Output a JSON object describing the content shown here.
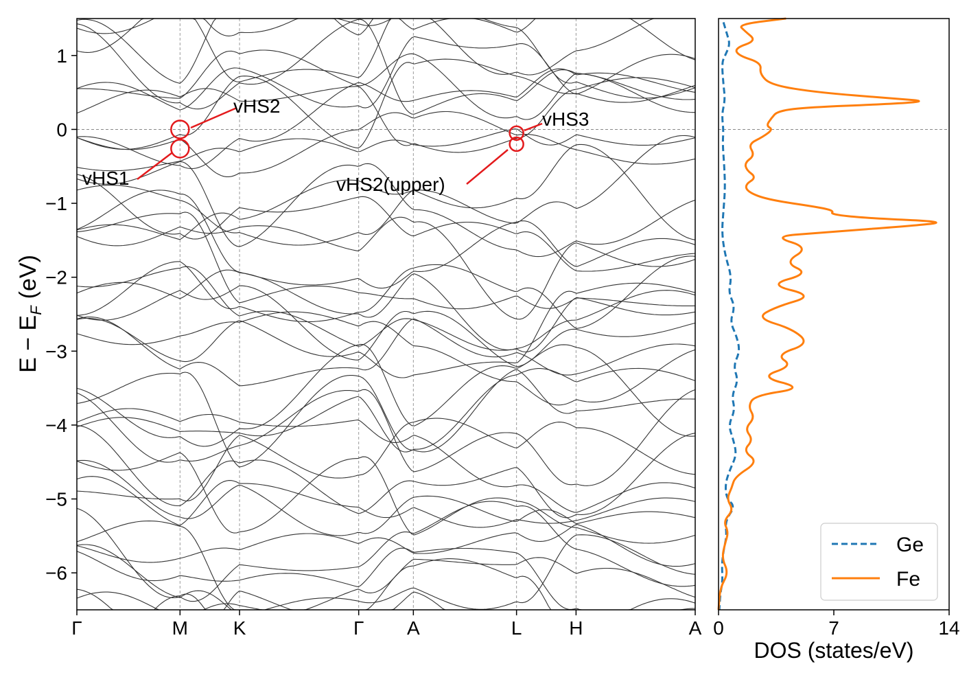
{
  "chart_data": [
    {
      "type": "line",
      "subtype": "band-structure",
      "ylabel_main": "E − E",
      "ylabel_sub": "F",
      "ylabel_unit": "(eV)",
      "ylim": [
        -6.5,
        1.5
      ],
      "yticks": [
        1,
        0,
        -1,
        -2,
        -3,
        -4,
        -5,
        -6
      ],
      "ytick_labels": [
        "1",
        "0",
        "−1",
        "−2",
        "−3",
        "−4",
        "−5",
        "−6"
      ],
      "k_path": [
        {
          "label": "Γ",
          "k": 0
        },
        {
          "label": "M",
          "k": 1
        },
        {
          "label": "K",
          "k": 1.577
        },
        {
          "label": "Γ",
          "k": 2.732
        },
        {
          "label": "A",
          "k": 3.262
        },
        {
          "label": "L",
          "k": 4.262
        },
        {
          "label": "H",
          "k": 4.839
        },
        {
          "label": "A",
          "k": 5.994
        }
      ],
      "fermi_level": 0,
      "grid": "vertical dashed at high-symmetry points",
      "annotations": [
        {
          "text": "vHS2",
          "k": 1,
          "energy": 0.0
        },
        {
          "text": "vHS1",
          "k": 1,
          "energy": -0.26
        },
        {
          "text": "vHS3",
          "k": 4.262,
          "energy": -0.05
        },
        {
          "text": "vHS2(upper)",
          "k": 4.262,
          "energy": -0.2
        }
      ]
    },
    {
      "type": "line",
      "subtype": "density-of-states",
      "xlabel": "DOS (states/eV)",
      "xlim": [
        0,
        14
      ],
      "xticks": [
        0,
        7,
        14
      ],
      "xtick_labels": [
        "0",
        "7",
        "14"
      ],
      "ylim": [
        -6.5,
        1.5
      ],
      "fermi_level": 0,
      "legend_position": "bottom-right",
      "series": [
        {
          "name": "Ge",
          "style": "dashed",
          "color": "#1f77b4",
          "energy": [
            1.45,
            1.3,
            1.15,
            1.0,
            0.9,
            0.6,
            0.4,
            0.2,
            0.0,
            -0.2,
            -0.5,
            -0.8,
            -1.1,
            -1.4,
            -1.7,
            -2.0,
            -2.2,
            -2.4,
            -2.6,
            -2.8,
            -3.0,
            -3.2,
            -3.4,
            -3.6,
            -3.8,
            -4.0,
            -4.2,
            -4.4,
            -4.6,
            -4.8,
            -5.0,
            -5.1,
            -5.3,
            -5.5,
            -5.7,
            -5.9,
            -6.1,
            -6.3,
            -6.5
          ],
          "dos": [
            0.3,
            0.5,
            0.7,
            0.4,
            0.2,
            0.3,
            0.4,
            0.2,
            0.3,
            0.25,
            0.35,
            0.4,
            0.3,
            0.2,
            0.4,
            0.8,
            0.6,
            1.0,
            0.7,
            1.1,
            1.3,
            0.9,
            1.2,
            0.8,
            1.0,
            0.6,
            0.9,
            1.1,
            0.7,
            0.4,
            0.5,
            1.0,
            0.4,
            0.5,
            0.3,
            0.2,
            0.25,
            0.1,
            0.05
          ]
        },
        {
          "name": "Fe",
          "style": "solid",
          "color": "#ff7f0e",
          "energy": [
            1.5,
            1.42,
            1.33,
            1.2,
            1.1,
            1.0,
            0.9,
            0.75,
            0.6,
            0.5,
            0.42,
            0.38,
            0.34,
            0.3,
            0.25,
            0.15,
            0.05,
            0.0,
            -0.1,
            -0.2,
            -0.35,
            -0.45,
            -0.55,
            -0.65,
            -0.75,
            -0.85,
            -0.95,
            -1.05,
            -1.1,
            -1.15,
            -1.2,
            -1.25,
            -1.3,
            -1.4,
            -1.45,
            -1.6,
            -1.8,
            -1.95,
            -2.1,
            -2.25,
            -2.4,
            -2.55,
            -2.7,
            -2.9,
            -3.05,
            -3.2,
            -3.35,
            -3.5,
            -3.6,
            -3.75,
            -3.9,
            -4.05,
            -4.2,
            -4.35,
            -4.5,
            -4.7,
            -4.85,
            -5.0,
            -5.15,
            -5.3,
            -5.45,
            -5.6,
            -5.8,
            -6.0,
            -6.2,
            -6.5
          ],
          "dos": [
            4.1,
            1.2,
            1.6,
            2.3,
            1.0,
            1.2,
            2.6,
            2.5,
            3.2,
            6.0,
            10.5,
            12.8,
            10.0,
            5.5,
            3.6,
            3.2,
            2.9,
            3.3,
            2.7,
            1.8,
            2.2,
            1.6,
            1.7,
            2.3,
            1.6,
            1.8,
            3.0,
            6.0,
            7.0,
            6.8,
            9.0,
            13.9,
            12.0,
            6.0,
            3.3,
            5.5,
            4.0,
            5.5,
            3.0,
            5.8,
            3.5,
            2.3,
            4.5,
            5.5,
            3.5,
            4.5,
            2.5,
            5.2,
            2.2,
            1.8,
            2.2,
            1.6,
            2.1,
            1.5,
            2.4,
            1.0,
            0.8,
            0.5,
            0.9,
            0.3,
            0.6,
            0.4,
            0.2,
            0.6,
            0.1,
            0.0
          ]
        }
      ]
    }
  ]
}
